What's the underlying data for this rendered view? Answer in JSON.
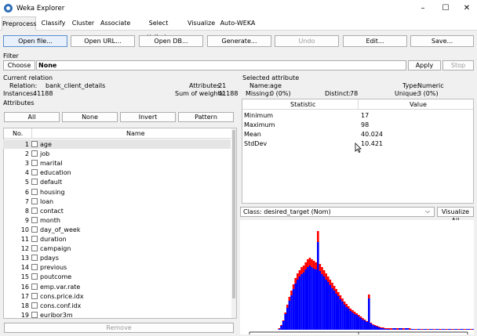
{
  "window": {
    "title": "Weka Explorer",
    "controls": [
      "–",
      "☐",
      "✕"
    ]
  },
  "tabs": [
    "Preprocess",
    "Classify",
    "Cluster",
    "Associate",
    "Select attributes",
    "Visualize",
    "Auto-WEKA"
  ],
  "toolbar": [
    "Open file...",
    "Open URL...",
    "Open DB...",
    "Generate...",
    "Undo",
    "Edit...",
    "Save..."
  ],
  "filter": {
    "heading": "Filter",
    "choose": "Choose",
    "value": "None",
    "apply": "Apply",
    "stop": "Stop"
  },
  "relation": {
    "heading": "Current relation",
    "relation_label": "Relation:",
    "relation_value": "bank_client_details",
    "instances_label": "Instances:",
    "instances_value": "41188",
    "attributes_label": "Attributes:",
    "attributes_value": "21",
    "weights_label": "Sum of weights:",
    "weights_value": "41188"
  },
  "attributes": {
    "heading": "Attributes",
    "buttons": [
      "All",
      "None",
      "Invert",
      "Pattern"
    ],
    "col_no": "No.",
    "col_name": "Name",
    "rows": [
      {
        "no": "1",
        "name": "age"
      },
      {
        "no": "2",
        "name": "job"
      },
      {
        "no": "3",
        "name": "marital"
      },
      {
        "no": "4",
        "name": "education"
      },
      {
        "no": "5",
        "name": "default"
      },
      {
        "no": "6",
        "name": "housing"
      },
      {
        "no": "7",
        "name": "loan"
      },
      {
        "no": "8",
        "name": "contact"
      },
      {
        "no": "9",
        "name": "month"
      },
      {
        "no": "10",
        "name": "day_of_week"
      },
      {
        "no": "11",
        "name": "duration"
      },
      {
        "no": "12",
        "name": "campaign"
      },
      {
        "no": "13",
        "name": "pdays"
      },
      {
        "no": "14",
        "name": "previous"
      },
      {
        "no": "15",
        "name": "poutcome"
      },
      {
        "no": "16",
        "name": "emp.var.rate"
      },
      {
        "no": "17",
        "name": "cons.price.idx"
      },
      {
        "no": "18",
        "name": "cons.conf.idx"
      },
      {
        "no": "19",
        "name": "euribor3m"
      }
    ],
    "remove": "Remove"
  },
  "selected": {
    "heading": "Selected attribute",
    "name_label": "Name:",
    "name_value": "age",
    "type_label": "Type:",
    "type_value": "Numeric",
    "missing_label": "Missing:",
    "missing_value": "0 (0%)",
    "distinct_label": "Distinct:",
    "distinct_value": "78",
    "unique_label": "Unique:",
    "unique_value": "3 (0%)",
    "col_stat": "Statistic",
    "col_value": "Value",
    "stats": [
      {
        "name": "Minimum",
        "value": "17"
      },
      {
        "name": "Maximum",
        "value": "98"
      },
      {
        "name": "Mean",
        "value": "40.024"
      },
      {
        "name": "StdDev",
        "value": "10.421"
      }
    ]
  },
  "class_select": {
    "value": "Class: desired_target (Nom)",
    "visualize_all": "Visualize All"
  },
  "colors": {
    "blue": "#0000ff",
    "red": "#ff0000"
  }
}
